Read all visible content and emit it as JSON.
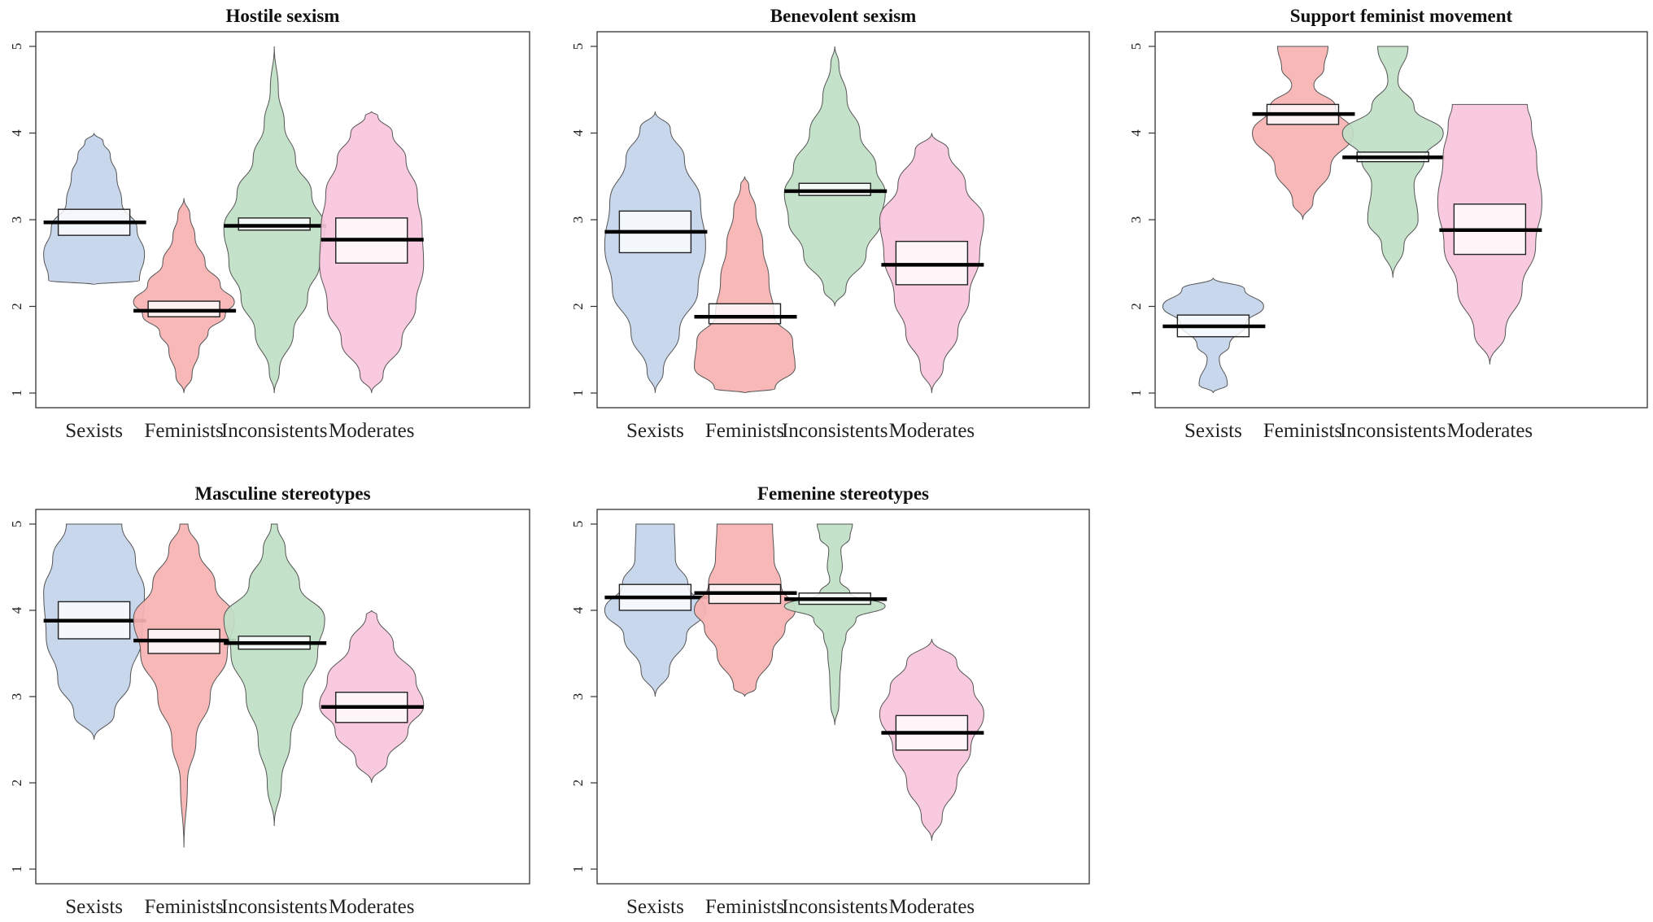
{
  "figure": {
    "layout": "2x3 grid"
  },
  "colors": {
    "Sexists": "#c3d4ea",
    "Feminists": "#f7b2b2",
    "Inconsistents": "#bfe0c4",
    "Moderates": "#f9c6dc"
  },
  "chart_data": [
    {
      "type": "violin",
      "title": "Hostile sexism",
      "categories": [
        "Sexists",
        "Feminists",
        "Inconsistents",
        "Moderates"
      ],
      "ylim": [
        1,
        5
      ],
      "yticks": [
        1,
        2,
        3,
        4,
        5
      ],
      "series": [
        {
          "name": "Sexists",
          "mean": 2.97,
          "box": [
            2.82,
            3.12
          ],
          "density": [
            [
              2.25,
              0.0
            ],
            [
              2.3,
              0.9
            ],
            [
              2.6,
              1.0
            ],
            [
              2.9,
              0.85
            ],
            [
              3.2,
              0.55
            ],
            [
              3.5,
              0.45
            ],
            [
              3.75,
              0.32
            ],
            [
              3.9,
              0.18
            ],
            [
              4.0,
              0.0
            ]
          ]
        },
        {
          "name": "Feminists",
          "mean": 1.95,
          "box": [
            1.88,
            2.06
          ],
          "density": [
            [
              1.0,
              0.0
            ],
            [
              1.2,
              0.16
            ],
            [
              1.5,
              0.3
            ],
            [
              1.7,
              0.48
            ],
            [
              1.9,
              0.82
            ],
            [
              2.05,
              1.0
            ],
            [
              2.25,
              0.72
            ],
            [
              2.5,
              0.42
            ],
            [
              2.8,
              0.22
            ],
            [
              3.05,
              0.12
            ],
            [
              3.25,
              0.0
            ]
          ]
        },
        {
          "name": "Inconsistents",
          "mean": 2.93,
          "box": [
            2.88,
            3.02
          ],
          "density": [
            [
              1.0,
              0.0
            ],
            [
              1.25,
              0.1
            ],
            [
              1.7,
              0.38
            ],
            [
              2.1,
              0.66
            ],
            [
              2.5,
              0.9
            ],
            [
              2.9,
              1.0
            ],
            [
              3.3,
              0.74
            ],
            [
              3.7,
              0.42
            ],
            [
              4.1,
              0.2
            ],
            [
              4.5,
              0.08
            ],
            [
              5.0,
              0.0
            ]
          ]
        },
        {
          "name": "Moderates",
          "mean": 2.77,
          "box": [
            2.5,
            3.02
          ],
          "density": [
            [
              1.0,
              0.0
            ],
            [
              1.2,
              0.22
            ],
            [
              1.6,
              0.58
            ],
            [
              2.0,
              0.85
            ],
            [
              2.5,
              1.0
            ],
            [
              2.9,
              0.97
            ],
            [
              3.3,
              0.88
            ],
            [
              3.7,
              0.66
            ],
            [
              4.0,
              0.4
            ],
            [
              4.2,
              0.12
            ],
            [
              4.25,
              0.0
            ]
          ]
        }
      ]
    },
    {
      "type": "violin",
      "title": "Benevolent sexism",
      "categories": [
        "Sexists",
        "Feminists",
        "Inconsistents",
        "Moderates"
      ],
      "ylim": [
        1,
        5
      ],
      "yticks": [
        1,
        2,
        3,
        4,
        5
      ],
      "series": [
        {
          "name": "Sexists",
          "mean": 2.86,
          "box": [
            2.62,
            3.1
          ],
          "density": [
            [
              1.0,
              0.0
            ],
            [
              1.25,
              0.16
            ],
            [
              1.7,
              0.48
            ],
            [
              2.2,
              0.85
            ],
            [
              2.7,
              1.0
            ],
            [
              3.2,
              0.9
            ],
            [
              3.7,
              0.58
            ],
            [
              4.05,
              0.3
            ],
            [
              4.25,
              0.0
            ]
          ]
        },
        {
          "name": "Feminists",
          "mean": 1.88,
          "box": [
            1.8,
            2.03
          ],
          "density": [
            [
              1.0,
              0.0
            ],
            [
              1.05,
              0.6
            ],
            [
              1.3,
              1.0
            ],
            [
              1.6,
              0.95
            ],
            [
              1.9,
              0.58
            ],
            [
              2.3,
              0.48
            ],
            [
              2.7,
              0.36
            ],
            [
              3.1,
              0.22
            ],
            [
              3.4,
              0.08
            ],
            [
              3.5,
              0.0
            ]
          ]
        },
        {
          "name": "Inconsistents",
          "mean": 3.33,
          "box": [
            3.28,
            3.42
          ],
          "density": [
            [
              2.0,
              0.0
            ],
            [
              2.2,
              0.22
            ],
            [
              2.6,
              0.62
            ],
            [
              3.0,
              0.92
            ],
            [
              3.3,
              1.0
            ],
            [
              3.6,
              0.82
            ],
            [
              4.0,
              0.5
            ],
            [
              4.4,
              0.24
            ],
            [
              4.8,
              0.08
            ],
            [
              5.0,
              0.0
            ]
          ]
        },
        {
          "name": "Moderates",
          "mean": 2.48,
          "box": [
            2.25,
            2.75
          ],
          "density": [
            [
              1.0,
              0.0
            ],
            [
              1.3,
              0.22
            ],
            [
              1.7,
              0.5
            ],
            [
              2.1,
              0.72
            ],
            [
              2.6,
              0.92
            ],
            [
              3.0,
              1.0
            ],
            [
              3.4,
              0.65
            ],
            [
              3.8,
              0.32
            ],
            [
              4.0,
              0.0
            ]
          ]
        }
      ]
    },
    {
      "type": "violin",
      "title": "Support feminist movement",
      "categories": [
        "Sexists",
        "Feminists",
        "Inconsistents",
        "Moderates"
      ],
      "ylim": [
        1,
        5
      ],
      "yticks": [
        1,
        2,
        3,
        4,
        5
      ],
      "series": [
        {
          "name": "Sexists",
          "mean": 1.77,
          "box": [
            1.65,
            1.9
          ],
          "density": [
            [
              1.0,
              0.0
            ],
            [
              1.1,
              0.28
            ],
            [
              1.4,
              0.12
            ],
            [
              1.55,
              0.32
            ],
            [
              1.8,
              0.65
            ],
            [
              2.0,
              1.0
            ],
            [
              2.2,
              0.62
            ],
            [
              2.33,
              0.0
            ]
          ]
        },
        {
          "name": "Feminists",
          "mean": 4.22,
          "box": [
            4.1,
            4.33
          ],
          "density": [
            [
              3.0,
              0.0
            ],
            [
              3.2,
              0.2
            ],
            [
              3.6,
              0.55
            ],
            [
              4.0,
              1.0
            ],
            [
              4.3,
              0.65
            ],
            [
              4.55,
              0.22
            ],
            [
              4.75,
              0.42
            ],
            [
              5.0,
              0.5
            ]
          ]
        },
        {
          "name": "Inconsistents",
          "mean": 3.72,
          "box": [
            3.67,
            3.78
          ],
          "density": [
            [
              2.33,
              0.0
            ],
            [
              2.7,
              0.22
            ],
            [
              3.0,
              0.5
            ],
            [
              3.4,
              0.42
            ],
            [
              3.7,
              0.62
            ],
            [
              4.0,
              1.0
            ],
            [
              4.3,
              0.42
            ],
            [
              4.6,
              0.1
            ],
            [
              5.0,
              0.3
            ]
          ]
        },
        {
          "name": "Moderates",
          "mean": 2.88,
          "box": [
            2.6,
            3.18
          ],
          "density": [
            [
              1.33,
              0.0
            ],
            [
              1.7,
              0.3
            ],
            [
              2.2,
              0.62
            ],
            [
              2.7,
              0.88
            ],
            [
              3.2,
              1.0
            ],
            [
              3.7,
              0.9
            ],
            [
              4.1,
              0.8
            ],
            [
              4.33,
              0.72
            ]
          ]
        }
      ]
    },
    {
      "type": "violin",
      "title": "Masculine stereotypes",
      "categories": [
        "Sexists",
        "Feminists",
        "Inconsistents",
        "Moderates"
      ],
      "ylim": [
        1,
        5
      ],
      "yticks": [
        1,
        2,
        3,
        4,
        5
      ],
      "series": [
        {
          "name": "Sexists",
          "mean": 3.88,
          "box": [
            3.67,
            4.1
          ],
          "density": [
            [
              2.5,
              0.0
            ],
            [
              2.8,
              0.4
            ],
            [
              3.2,
              0.72
            ],
            [
              3.7,
              0.95
            ],
            [
              4.2,
              1.0
            ],
            [
              4.6,
              0.82
            ],
            [
              5.0,
              0.55
            ]
          ]
        },
        {
          "name": "Feminists",
          "mean": 3.65,
          "box": [
            3.5,
            3.78
          ],
          "density": [
            [
              1.25,
              0.0
            ],
            [
              2.0,
              0.07
            ],
            [
              2.5,
              0.24
            ],
            [
              3.0,
              0.52
            ],
            [
              3.5,
              0.86
            ],
            [
              3.9,
              1.0
            ],
            [
              4.3,
              0.62
            ],
            [
              4.7,
              0.3
            ],
            [
              5.0,
              0.08
            ]
          ]
        },
        {
          "name": "Inconsistents",
          "mean": 3.62,
          "box": [
            3.55,
            3.7
          ],
          "density": [
            [
              1.5,
              0.0
            ],
            [
              2.0,
              0.14
            ],
            [
              2.5,
              0.32
            ],
            [
              3.0,
              0.56
            ],
            [
              3.5,
              0.86
            ],
            [
              3.9,
              1.0
            ],
            [
              4.3,
              0.5
            ],
            [
              4.7,
              0.22
            ],
            [
              5.0,
              0.06
            ]
          ]
        },
        {
          "name": "Moderates",
          "mean": 2.88,
          "box": [
            2.7,
            3.05
          ],
          "density": [
            [
              2.0,
              0.0
            ],
            [
              2.25,
              0.3
            ],
            [
              2.6,
              0.7
            ],
            [
              2.9,
              1.0
            ],
            [
              3.2,
              0.85
            ],
            [
              3.6,
              0.42
            ],
            [
              3.95,
              0.1
            ],
            [
              4.0,
              0.0
            ]
          ]
        }
      ]
    },
    {
      "type": "violin",
      "title": "Femenine stereotypes",
      "categories": [
        "Sexists",
        "Feminists",
        "Inconsistents",
        "Moderates"
      ],
      "ylim": [
        1,
        5
      ],
      "yticks": [
        1,
        2,
        3,
        4,
        5
      ],
      "series": [
        {
          "name": "Sexists",
          "mean": 4.15,
          "box": [
            4.0,
            4.3
          ],
          "density": [
            [
              3.0,
              0.0
            ],
            [
              3.3,
              0.28
            ],
            [
              3.7,
              0.62
            ],
            [
              4.0,
              1.0
            ],
            [
              4.3,
              0.65
            ],
            [
              4.6,
              0.4
            ],
            [
              5.0,
              0.38
            ]
          ]
        },
        {
          "name": "Feminists",
          "mean": 4.2,
          "box": [
            4.08,
            4.3
          ],
          "density": [
            [
              3.0,
              0.0
            ],
            [
              3.1,
              0.22
            ],
            [
              3.5,
              0.55
            ],
            [
              3.8,
              0.8
            ],
            [
              4.0,
              1.0
            ],
            [
              4.3,
              0.72
            ],
            [
              4.6,
              0.58
            ],
            [
              5.0,
              0.55
            ]
          ]
        },
        {
          "name": "Inconsistents",
          "mean": 4.13,
          "box": [
            4.07,
            4.2
          ],
          "density": [
            [
              2.67,
              0.0
            ],
            [
              2.9,
              0.08
            ],
            [
              3.2,
              0.1
            ],
            [
              3.5,
              0.14
            ],
            [
              3.7,
              0.22
            ],
            [
              3.9,
              0.42
            ],
            [
              4.05,
              1.0
            ],
            [
              4.2,
              0.3
            ],
            [
              4.35,
              0.1
            ],
            [
              4.5,
              0.15
            ],
            [
              4.7,
              0.12
            ],
            [
              4.85,
              0.3
            ],
            [
              5.0,
              0.35
            ]
          ]
        },
        {
          "name": "Moderates",
          "mean": 2.58,
          "box": [
            2.38,
            2.78
          ],
          "density": [
            [
              1.33,
              0.0
            ],
            [
              1.6,
              0.2
            ],
            [
              2.0,
              0.48
            ],
            [
              2.4,
              0.75
            ],
            [
              2.8,
              1.0
            ],
            [
              3.1,
              0.8
            ],
            [
              3.4,
              0.48
            ],
            [
              3.67,
              0.0
            ]
          ]
        }
      ]
    }
  ]
}
